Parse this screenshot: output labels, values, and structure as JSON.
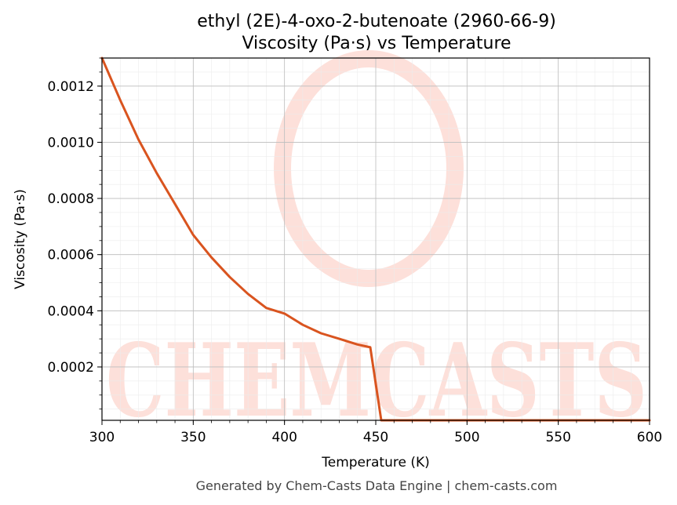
{
  "chart_data": {
    "type": "line",
    "title": "ethyl (2E)-4-oxo-2-butenoate (2960-66-9)",
    "subtitle": "Viscosity (Pa·s) vs Temperature",
    "xlabel": "Temperature (K)",
    "ylabel": "Viscosity (Pa·s)",
    "xlim": [
      300,
      600
    ],
    "ylim": [
      1e-05,
      0.0013
    ],
    "xticks": [
      300,
      350,
      400,
      450,
      500,
      550,
      600
    ],
    "xtick_labels": [
      "300",
      "350",
      "400",
      "450",
      "500",
      "550",
      "600"
    ],
    "yticks": [
      0.0002,
      0.0004,
      0.0006,
      0.0008,
      0.001,
      0.0012
    ],
    "ytick_labels": [
      "0.0002",
      "0.0004",
      "0.0006",
      "0.0008",
      "0.0010",
      "0.0012"
    ],
    "grid": true,
    "series": [
      {
        "color": "#d9541f",
        "x": [
          300,
          310,
          320,
          330,
          340,
          350,
          360,
          370,
          380,
          390,
          400,
          410,
          420,
          430,
          440,
          447,
          453,
          460,
          500,
          550,
          600
        ],
        "y": [
          0.0013,
          0.00115,
          0.00101,
          0.00089,
          0.00078,
          0.00067,
          0.00059,
          0.00052,
          0.00046,
          0.00041,
          0.00039,
          0.00035,
          0.00032,
          0.0003,
          0.00028,
          0.00027,
          1e-05,
          1e-05,
          1e-05,
          1e-05,
          1e-05
        ]
      }
    ]
  },
  "watermark": {
    "text": "CHEMCASTS",
    "color": "#fde0da"
  },
  "footer": "Generated by Chem-Casts Data Engine | chem-casts.com"
}
